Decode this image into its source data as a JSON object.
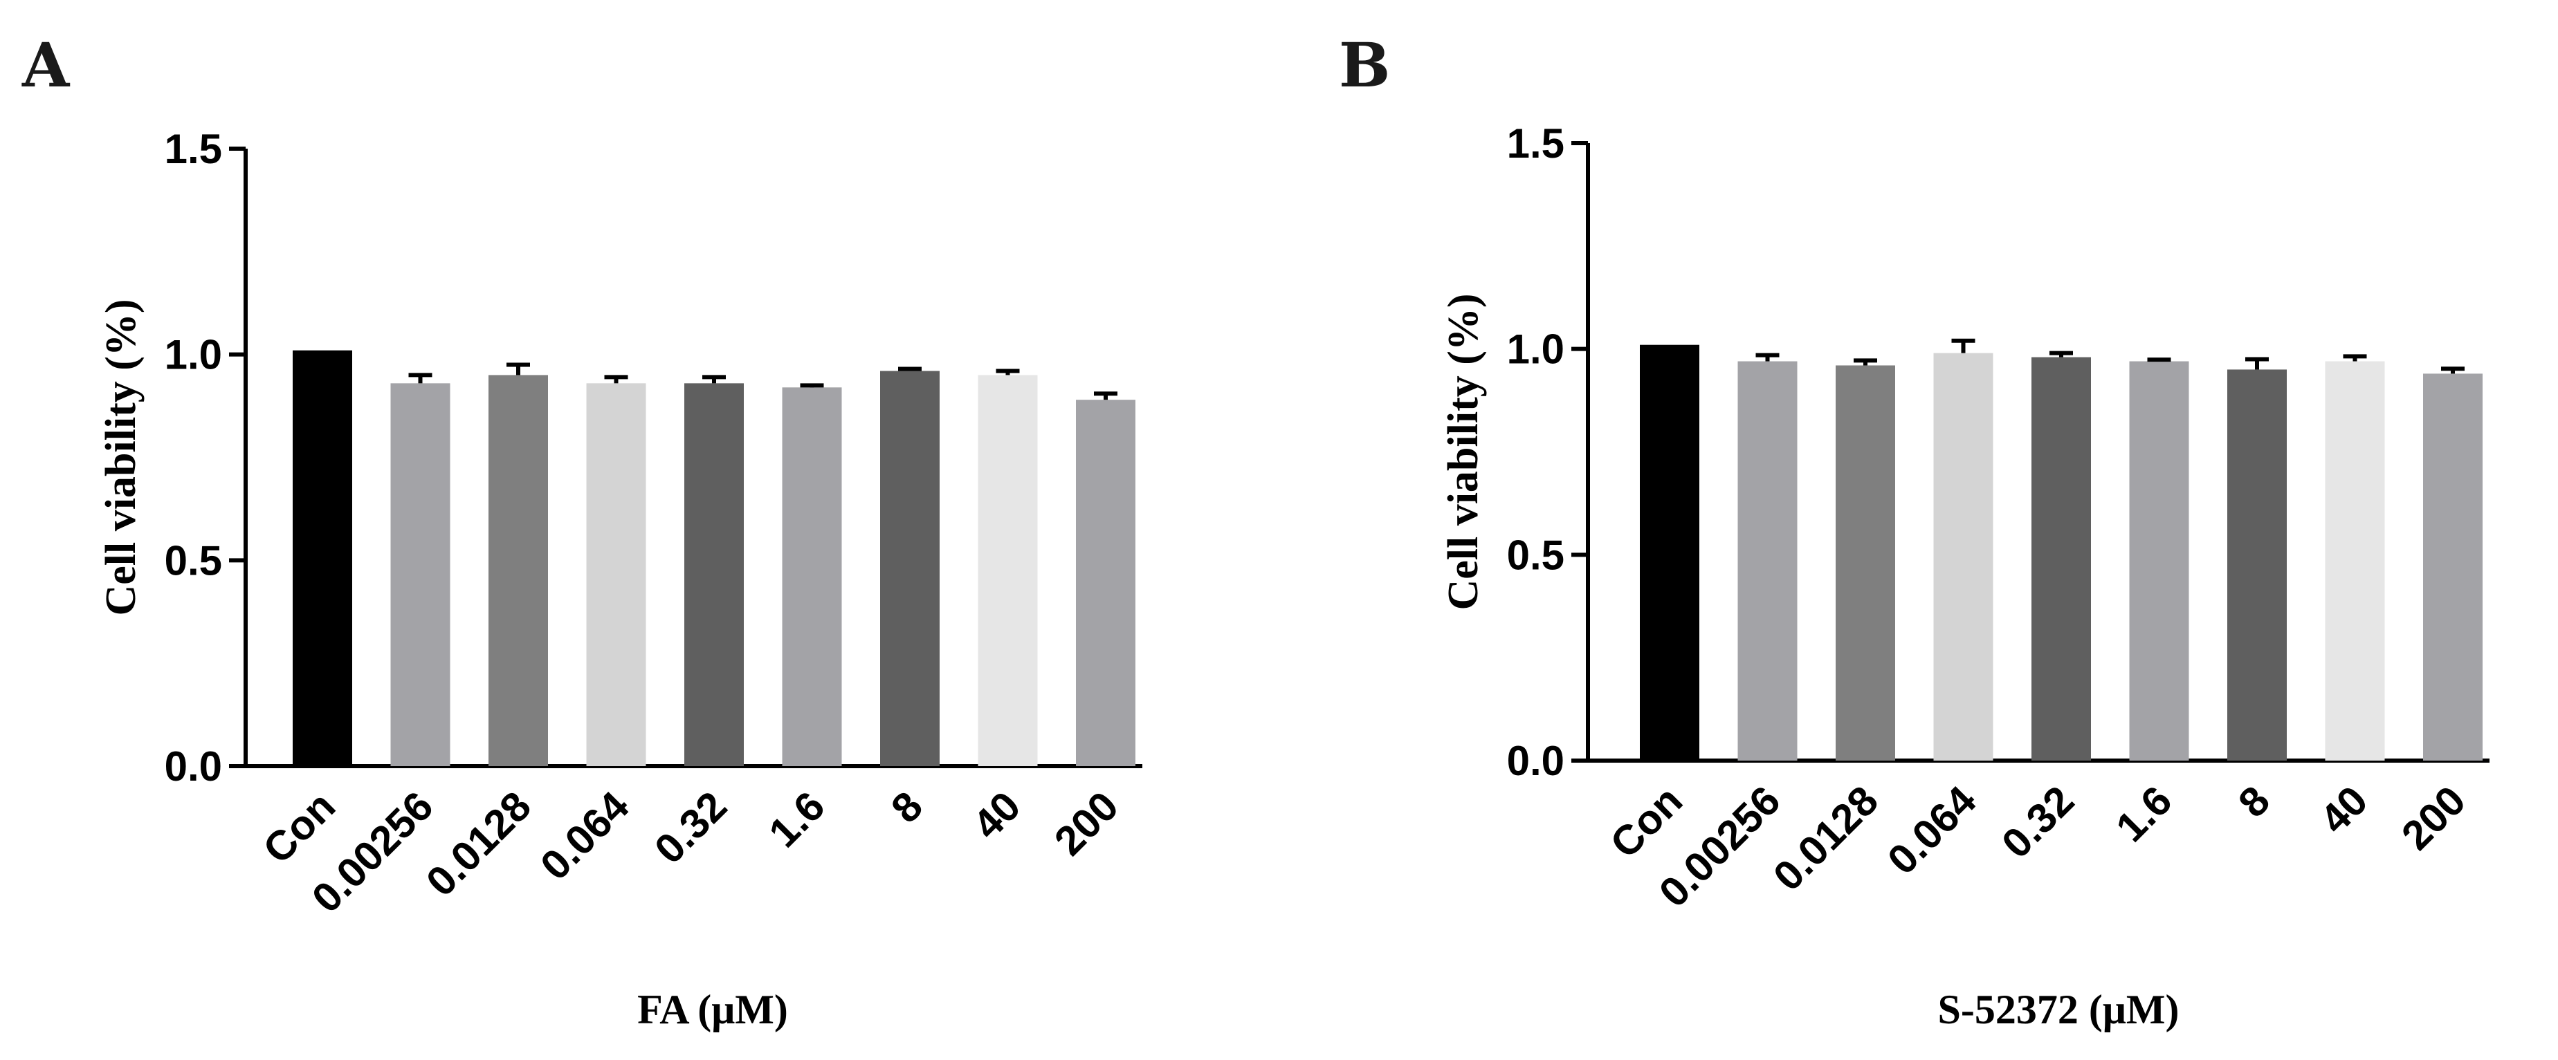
{
  "chart_data": [
    {
      "panel": "A",
      "type": "bar",
      "categories": [
        "Con",
        "0.00256",
        "0.0128",
        "0.064",
        "0.32",
        "1.6",
        "8",
        "40",
        "200"
      ],
      "values": [
        1.01,
        0.93,
        0.95,
        0.93,
        0.93,
        0.92,
        0.96,
        0.95,
        0.89
      ],
      "errors": [
        0.0,
        0.02,
        0.025,
        0.015,
        0.015,
        0.005,
        0.005,
        0.01,
        0.015
      ],
      "bar_colors": [
        "#000000",
        "#a3a3a7",
        "#7f7f7f",
        "#d4d4d4",
        "#5f5f5f",
        "#a3a3a7",
        "#5f5f5f",
        "#e6e6e6",
        "#a3a3a7"
      ],
      "title": "",
      "xlabel": "FA (μM)",
      "ylabel": "Cell viability (%)",
      "ylim": [
        0.0,
        1.5
      ],
      "yticks": [
        "0.0",
        "0.5",
        "1.0",
        "1.5"
      ]
    },
    {
      "panel": "B",
      "type": "bar",
      "categories": [
        "Con",
        "0.00256",
        "0.0128",
        "0.064",
        "0.32",
        "1.6",
        "8",
        "40",
        "200"
      ],
      "values": [
        1.01,
        0.97,
        0.96,
        0.99,
        0.98,
        0.97,
        0.95,
        0.97,
        0.94
      ],
      "errors": [
        0.0,
        0.015,
        0.012,
        0.03,
        0.01,
        0.004,
        0.025,
        0.012,
        0.012
      ],
      "bar_colors": [
        "#000000",
        "#a3a3a7",
        "#7f7f7f",
        "#d4d4d4",
        "#5f5f5f",
        "#a3a3a7",
        "#5f5f5f",
        "#e6e6e6",
        "#a3a3a7"
      ],
      "title": "",
      "xlabel": "S-52372 (μM)",
      "ylabel": "Cell viability (%)",
      "ylim": [
        0.0,
        1.5
      ],
      "yticks": [
        "0.0",
        "0.5",
        "1.0",
        "1.5"
      ]
    }
  ]
}
